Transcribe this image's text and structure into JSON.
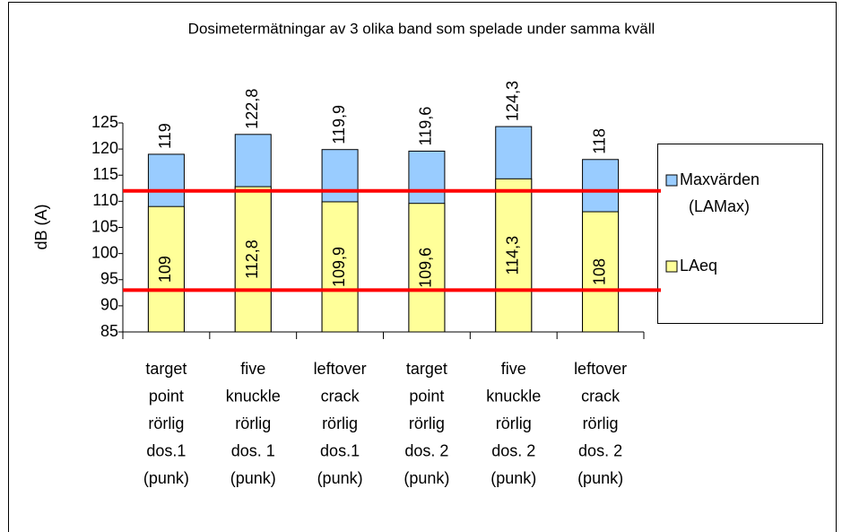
{
  "chart_data": {
    "type": "bar",
    "title": "Dosimetermätningar av 3 olika band som spelade under samma kväll",
    "y_label": "dB (A)",
    "categories": [
      [
        "target",
        "point",
        "rörlig",
        "dos.1",
        "(punk)"
      ],
      [
        "five",
        "knuckle",
        "rörlig",
        "dos. 1",
        "(punk)"
      ],
      [
        "leftover",
        "crack",
        "rörlig",
        "dos.1",
        "(punk)"
      ],
      [
        "target",
        "point",
        "rörlig",
        "dos. 2",
        "(punk)"
      ],
      [
        "five",
        "knuckle",
        "rörlig",
        "dos. 2",
        "(punk)"
      ],
      [
        "leftover",
        "crack",
        "rörlig",
        "dos. 2",
        "(punk)"
      ]
    ],
    "series": [
      {
        "name": "Maxvärden (LAMax)",
        "color": "#99ccff",
        "values": [
          119,
          122.8,
          119.9,
          119.6,
          124.3,
          118
        ],
        "value_labels": [
          "119",
          "122,8",
          "119,9",
          "119,6",
          "124,3",
          "118"
        ]
      },
      {
        "name": "LAeq",
        "color": "#ffff99",
        "values": [
          109,
          112.8,
          109.9,
          109.6,
          114.3,
          108
        ],
        "value_labels": [
          "109",
          "112,8",
          "109,9",
          "109,6",
          "114,3",
          "108"
        ]
      }
    ],
    "ylim": [
      85,
      125
    ],
    "yticks": [
      85,
      90,
      95,
      100,
      105,
      110,
      115,
      120,
      125
    ],
    "reference_lines": [
      112,
      93
    ],
    "reference_color": "#ff0000",
    "legend": "right"
  }
}
